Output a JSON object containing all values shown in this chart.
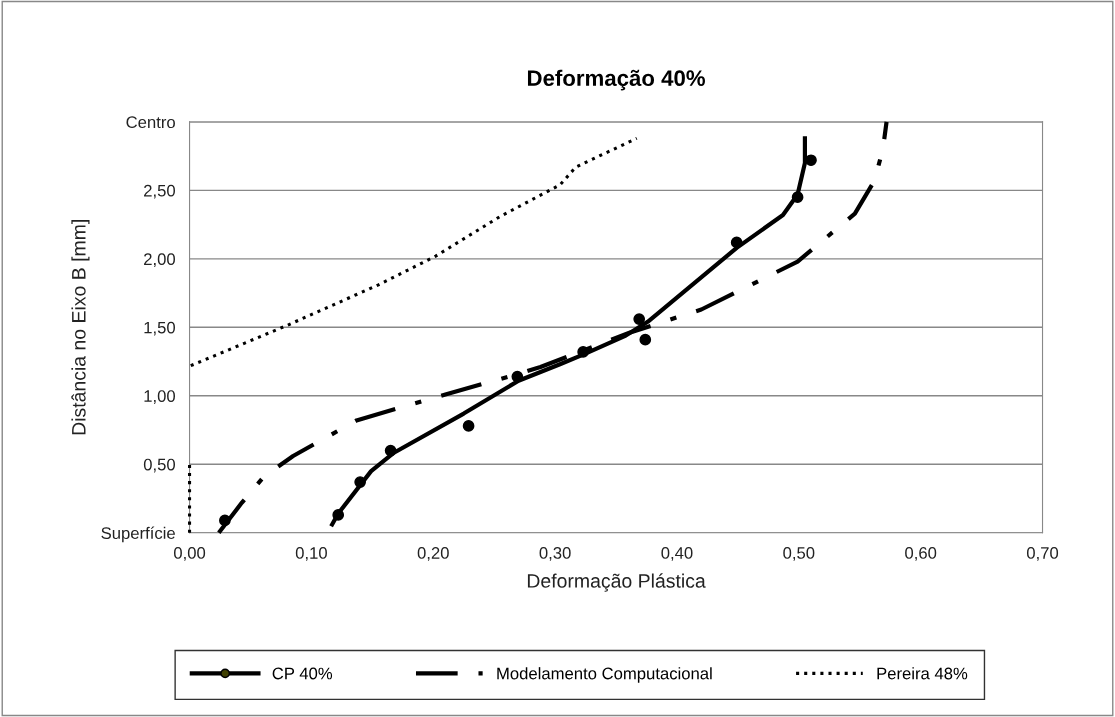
{
  "chart_data": {
    "type": "line",
    "title": "Deformação 40%",
    "xlabel": "Deformação Plástica",
    "ylabel": "Distância no Eixo B [mm]",
    "xlim": [
      0,
      0.7
    ],
    "ylim": [
      0,
      3
    ],
    "xticks": [
      {
        "value": 0,
        "label": "0,00"
      },
      {
        "value": 0.1,
        "label": "0,10"
      },
      {
        "value": 0.2,
        "label": "0,20"
      },
      {
        "value": 0.3,
        "label": "0,30"
      },
      {
        "value": 0.4,
        "label": "0,40"
      },
      {
        "value": 0.5,
        "label": "0,50"
      },
      {
        "value": 0.6,
        "label": "0,60"
      },
      {
        "value": 0.7,
        "label": "0,70"
      }
    ],
    "yticks": [
      {
        "value": 0,
        "label": "Superfície"
      },
      {
        "value": 0.5,
        "label": "0,50"
      },
      {
        "value": 1,
        "label": "1,00"
      },
      {
        "value": 1.5,
        "label": "1,50"
      },
      {
        "value": 2,
        "label": "2,00"
      },
      {
        "value": 2.5,
        "label": "2,50"
      },
      {
        "value": 3,
        "label": "Centro"
      }
    ],
    "grid": "y",
    "legend": "bottom",
    "series": [
      {
        "name": "CP 40%",
        "type": "scatter",
        "color": "#000000",
        "marker": "circle",
        "x": [
          0.029,
          0.122,
          0.14,
          0.165,
          0.229,
          0.269,
          0.323,
          0.369,
          0.374,
          0.449,
          0.499,
          0.51
        ],
        "values": [
          0.09,
          0.13,
          0.37,
          0.6,
          0.78,
          1.14,
          1.32,
          1.56,
          1.41,
          2.12,
          2.45,
          2.72
        ]
      },
      {
        "color": "#000000",
        "line_style": "solid",
        "x": [
          0.117,
          0.122,
          0.149,
          0.167,
          0.225,
          0.27,
          0.304,
          0.323,
          0.358,
          0.376,
          0.449,
          0.487,
          0.499,
          0.505,
          0.505
        ],
        "values": [
          0.06,
          0.14,
          0.45,
          0.58,
          0.87,
          1.11,
          1.23,
          1.3,
          1.44,
          1.54,
          2.08,
          2.32,
          2.47,
          2.7,
          2.88
        ]
      },
      {
        "name": "Modelamento Computacional",
        "color": "#000000",
        "line_style": "dashdot",
        "x": [
          0.024,
          0.043,
          0.061,
          0.085,
          0.137,
          0.21,
          0.27,
          0.288,
          0.361,
          0.42,
          0.499,
          0.546,
          0.562,
          0.569,
          0.572
        ],
        "values": [
          0.0,
          0.22,
          0.41,
          0.56,
          0.82,
          1.01,
          1.16,
          1.21,
          1.46,
          1.63,
          1.98,
          2.33,
          2.57,
          2.8,
          3.0
        ]
      },
      {
        "name": "Pereira 48%",
        "color": "#000000",
        "line_style": "dotted",
        "x": [
          0.0,
          0.0,
          null,
          0.001,
          0.079,
          0.155,
          0.202,
          0.255,
          0.304,
          0.317,
          0.367
        ],
        "values": [
          0.0,
          0.5,
          null,
          1.22,
          1.51,
          1.81,
          2.02,
          2.31,
          2.54,
          2.67,
          2.88
        ]
      }
    ]
  }
}
